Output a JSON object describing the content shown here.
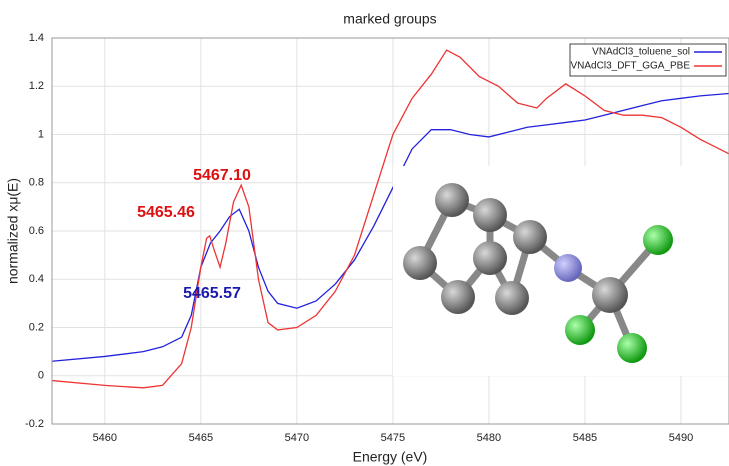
{
  "chart_data": {
    "type": "line",
    "title": "marked groups",
    "x_label": "Energy    (eV)",
    "y_label": "normalized xμ(E)",
    "xlim": [
      5457.25,
      5492.5
    ],
    "ylim": [
      -0.2,
      1.4
    ],
    "xticks": [
      5460,
      5465,
      5470,
      5475,
      5480,
      5485,
      5490
    ],
    "yticks": [
      -0.2,
      0,
      0.2,
      0.4,
      0.6,
      0.8,
      1,
      1.2,
      1.4
    ],
    "grid": true,
    "legend": "top-right",
    "series": [
      {
        "name": "VNAdCl3_toluene_sol",
        "color": "#2222dd",
        "x": [
          5457.25,
          5460,
          5462,
          5463,
          5464,
          5464.5,
          5465,
          5465.5,
          5466,
          5466.5,
          5467,
          5467.5,
          5468,
          5468.5,
          5469,
          5470,
          5471,
          5472,
          5473,
          5474,
          5475,
          5476,
          5477,
          5478,
          5479,
          5480,
          5481,
          5482,
          5483,
          5484,
          5485,
          5486,
          5487,
          5488,
          5489,
          5490,
          5491,
          5492.5
        ],
        "values": [
          0.06,
          0.08,
          0.1,
          0.12,
          0.16,
          0.25,
          0.45,
          0.55,
          0.6,
          0.66,
          0.69,
          0.6,
          0.45,
          0.35,
          0.3,
          0.28,
          0.31,
          0.38,
          0.48,
          0.62,
          0.78,
          0.94,
          1.02,
          1.02,
          1.0,
          0.99,
          1.01,
          1.03,
          1.04,
          1.05,
          1.06,
          1.08,
          1.1,
          1.12,
          1.14,
          1.15,
          1.16,
          1.17
        ]
      },
      {
        "name": "VNAdCl3_DFT_GGA_PBE",
        "color": "#ee3333",
        "x": [
          5457.25,
          5460,
          5462,
          5463,
          5464,
          5464.5,
          5465,
          5465.3,
          5465.46,
          5465.7,
          5466,
          5466.3,
          5466.7,
          5467.1,
          5467.5,
          5468,
          5468.5,
          5469,
          5470,
          5471,
          5472,
          5473,
          5474,
          5475,
          5476,
          5477,
          5477.8,
          5478.5,
          5479.5,
          5480.5,
          5481.5,
          5482.5,
          5483,
          5484,
          5485,
          5486,
          5487,
          5488,
          5489,
          5490,
          5491,
          5492.5
        ],
        "values": [
          -0.02,
          -0.04,
          -0.05,
          -0.04,
          0.05,
          0.2,
          0.45,
          0.57,
          0.58,
          0.52,
          0.45,
          0.55,
          0.72,
          0.79,
          0.7,
          0.4,
          0.22,
          0.19,
          0.2,
          0.25,
          0.35,
          0.5,
          0.75,
          1.0,
          1.15,
          1.25,
          1.35,
          1.32,
          1.24,
          1.2,
          1.13,
          1.11,
          1.15,
          1.21,
          1.16,
          1.1,
          1.08,
          1.08,
          1.07,
          1.03,
          0.98,
          0.92
        ]
      }
    ],
    "annotations": [
      {
        "text": "5467.10",
        "color": "#dd1111"
      },
      {
        "text": "5465.46",
        "color": "#dd1111"
      },
      {
        "text": "5465.57",
        "color": "#1a1aaa"
      }
    ]
  }
}
